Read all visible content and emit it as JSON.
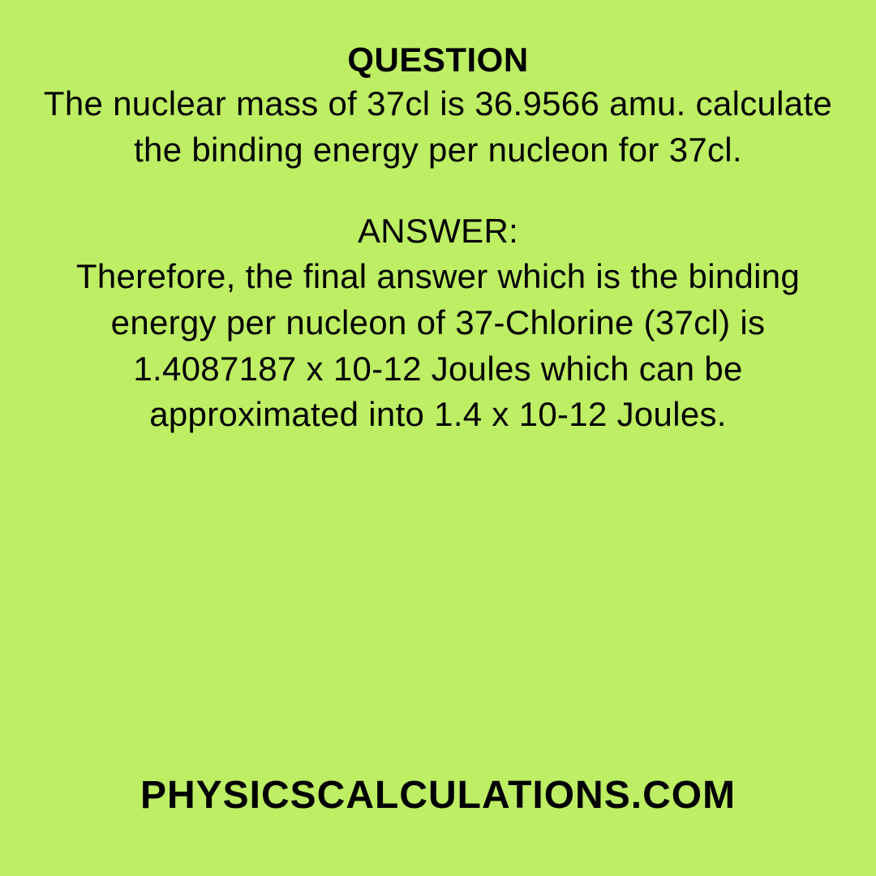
{
  "background_color": "#bdee63",
  "text_color": "#000000",
  "heading": {
    "text": "QUESTION",
    "fontsize": 42,
    "weight": 700
  },
  "question": {
    "text": "The nuclear mass of 37cl is 36.9566 amu. calculate the binding energy per nucleon for 37cl.",
    "fontsize": 42,
    "weight": 400
  },
  "answer_label": {
    "text": "ANSWER:",
    "fontsize": 42,
    "weight": 400
  },
  "answer": {
    "text": "Therefore, the final answer which is the binding energy per nucleon of 37-Chlorine (37cl) is 1.4087187 x 10-12 Joules which can be approximated into 1.4 x 10-12 Joules.",
    "fontsize": 42,
    "weight": 400
  },
  "footer": {
    "text": "PHYSICSCALCULATIONS.COM",
    "fontsize": 48,
    "weight": 800
  }
}
